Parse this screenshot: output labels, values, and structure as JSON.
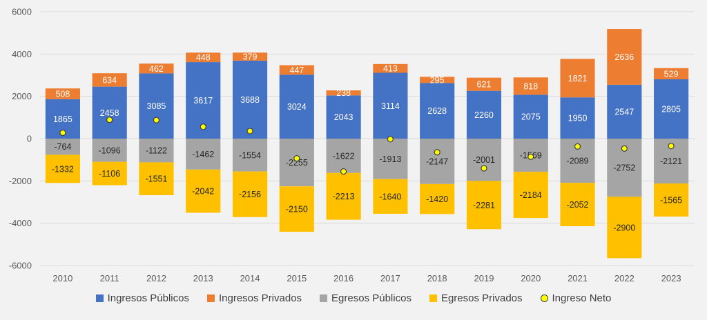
{
  "chart_data": {
    "type": "bar",
    "stacked": true,
    "title": "",
    "xlabel": "",
    "ylabel": "",
    "ylim": [
      -6000,
      6000
    ],
    "yticks": [
      6000,
      4000,
      2000,
      0,
      -2000,
      -4000,
      -6000
    ],
    "grid": true,
    "legend_position": "bottom",
    "categories": [
      "2010",
      "2011",
      "2012",
      "2013",
      "2014",
      "2015",
      "2016",
      "2017",
      "2018",
      "2019",
      "2020",
      "2021",
      "2022",
      "2023"
    ],
    "series": [
      {
        "name": "Ingresos Públicos",
        "color": "#4472c4",
        "label_color": "#ffffff",
        "values": [
          1865,
          2458,
          3085,
          3617,
          3688,
          3024,
          2043,
          3114,
          2628,
          2260,
          2075,
          1950,
          2547,
          2805
        ]
      },
      {
        "name": "Ingresos Privados",
        "color": "#ed7d31",
        "label_color": "#ffffff",
        "values": [
          508,
          634,
          462,
          448,
          379,
          447,
          238,
          413,
          295,
          621,
          818,
          1821,
          2636,
          529
        ]
      },
      {
        "name": "Egresos Públicos",
        "color": "#a5a5a5",
        "label_color": "#262626",
        "values": [
          -764,
          -1096,
          -1122,
          -1462,
          -1554,
          -2255,
          -1622,
          -1913,
          -2147,
          -2001,
          -1569,
          -2089,
          -2752,
          -2121
        ]
      },
      {
        "name": "Egresos Privados",
        "color": "#ffc000",
        "label_color": "#262626",
        "values": [
          -1332,
          -1106,
          -1551,
          -2042,
          -2156,
          -2150,
          -2213,
          -1640,
          -1420,
          -2281,
          -2184,
          -2052,
          -2900,
          -1565
        ]
      }
    ],
    "net_series": {
      "name": "Ingreso Neto",
      "type": "scatter",
      "color": "#ffff00",
      "stroke": "#404040",
      "values": [
        277,
        890,
        874,
        561,
        357,
        -934,
        -1554,
        -26,
        -644,
        -1401,
        -860,
        -370,
        -469,
        -352
      ]
    }
  }
}
